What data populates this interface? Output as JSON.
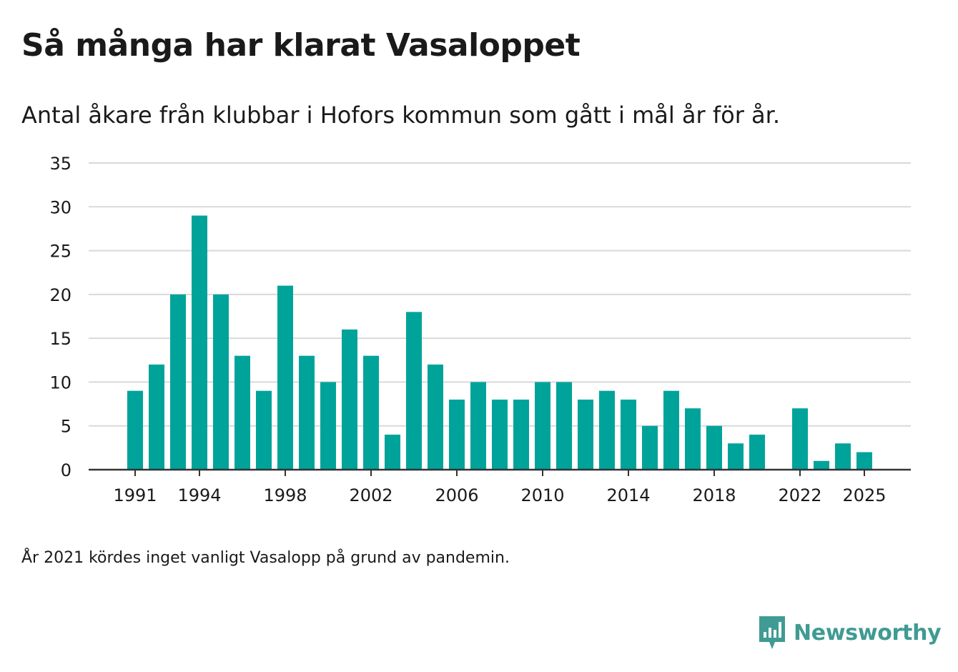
{
  "header": {
    "title": "Så många har klarat Vasaloppet",
    "subtitle": "Antal åkare från klubbar i Hofors kommun som gått i mål år för år."
  },
  "footer": {
    "note": "År 2021 kördes inget vanligt Vasalopp på grund av pandemin.",
    "brand_name": "Newsworthy",
    "brand_icon": "chart-speech-bubble-icon"
  },
  "colors": {
    "bar": "#00a39a",
    "grid": "#d9d9d9",
    "axis": "#333333",
    "brand": "#3f9b93"
  },
  "chart_data": {
    "type": "bar",
    "title": "Så många har klarat Vasaloppet",
    "xlabel": "",
    "ylabel": "",
    "ylim": [
      0,
      35
    ],
    "yticks": [
      0,
      5,
      10,
      15,
      20,
      25,
      30,
      35
    ],
    "xticks": [
      1991,
      1994,
      1998,
      2002,
      2006,
      2010,
      2014,
      2018,
      2022,
      2025
    ],
    "grid": true,
    "categories": [
      1991,
      1992,
      1993,
      1994,
      1995,
      1996,
      1997,
      1998,
      1999,
      2000,
      2001,
      2002,
      2003,
      2004,
      2005,
      2006,
      2007,
      2008,
      2009,
      2010,
      2011,
      2012,
      2013,
      2014,
      2015,
      2016,
      2017,
      2018,
      2019,
      2020,
      2021,
      2022,
      2023,
      2024,
      2025
    ],
    "values": [
      9,
      12,
      20,
      29,
      20,
      13,
      9,
      21,
      13,
      10,
      16,
      13,
      4,
      18,
      12,
      8,
      10,
      8,
      8,
      10,
      10,
      8,
      9,
      8,
      5,
      9,
      7,
      5,
      3,
      4,
      null,
      7,
      1,
      3,
      2
    ]
  }
}
